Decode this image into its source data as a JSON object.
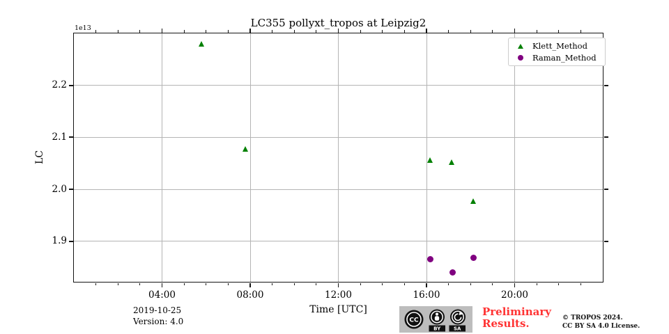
{
  "chart_data": {
    "type": "scatter",
    "title": "LC355 pollyxt_tropos at Leipzig2",
    "x_axis": {
      "label": "Time [UTC]",
      "xlim_hours": [
        0,
        24
      ],
      "major_ticks": [
        {
          "hour": 4,
          "label": "04:00"
        },
        {
          "hour": 8,
          "label": "08:00"
        },
        {
          "hour": 12,
          "label": "12:00"
        },
        {
          "hour": 16,
          "label": "16:00"
        },
        {
          "hour": 20,
          "label": "20:00"
        }
      ],
      "minor_tick_hours": [
        1,
        2,
        3,
        5,
        6,
        7,
        9,
        10,
        11,
        13,
        14,
        15,
        17,
        18,
        19,
        21,
        22,
        23
      ]
    },
    "y_axis": {
      "label": "LC",
      "offset_text": "1e13",
      "ylim": [
        1.822,
        2.3
      ],
      "major_ticks": [
        {
          "value": 2.2,
          "label": "2.2"
        },
        {
          "value": 2.1,
          "label": "2.1"
        },
        {
          "value": 2.0,
          "label": "2.0"
        },
        {
          "value": 1.9,
          "label": "1.9"
        }
      ]
    },
    "grid": true,
    "legend_position": "upper right",
    "series": [
      {
        "name": "Klett_Method",
        "marker": "triangle-up",
        "color": "#008000",
        "points": [
          {
            "hour": 5.82,
            "value_e13": 2.279
          },
          {
            "hour": 7.8,
            "value_e13": 2.077
          },
          {
            "hour": 16.17,
            "value_e13": 2.056
          },
          {
            "hour": 17.17,
            "value_e13": 2.051
          },
          {
            "hour": 18.15,
            "value_e13": 1.976
          }
        ]
      },
      {
        "name": "Raman_Method",
        "marker": "circle",
        "color": "#800080",
        "points": [
          {
            "hour": 16.17,
            "value_e13": 1.866
          },
          {
            "hour": 17.17,
            "value_e13": 1.84
          },
          {
            "hour": 18.15,
            "value_e13": 1.868
          }
        ]
      }
    ]
  },
  "footer": {
    "date": "2019-10-25",
    "version": "Version: 4.0",
    "preliminary_line1": "Preliminary",
    "preliminary_line2": "Results.",
    "preliminary_color": "#ff3333",
    "copyright_line1": "© TROPOS 2024.",
    "copyright_line2": "CC BY SA 4.0 License.",
    "cc_badge": {
      "cc": "CC",
      "by": "BY",
      "sa": "SA"
    }
  }
}
